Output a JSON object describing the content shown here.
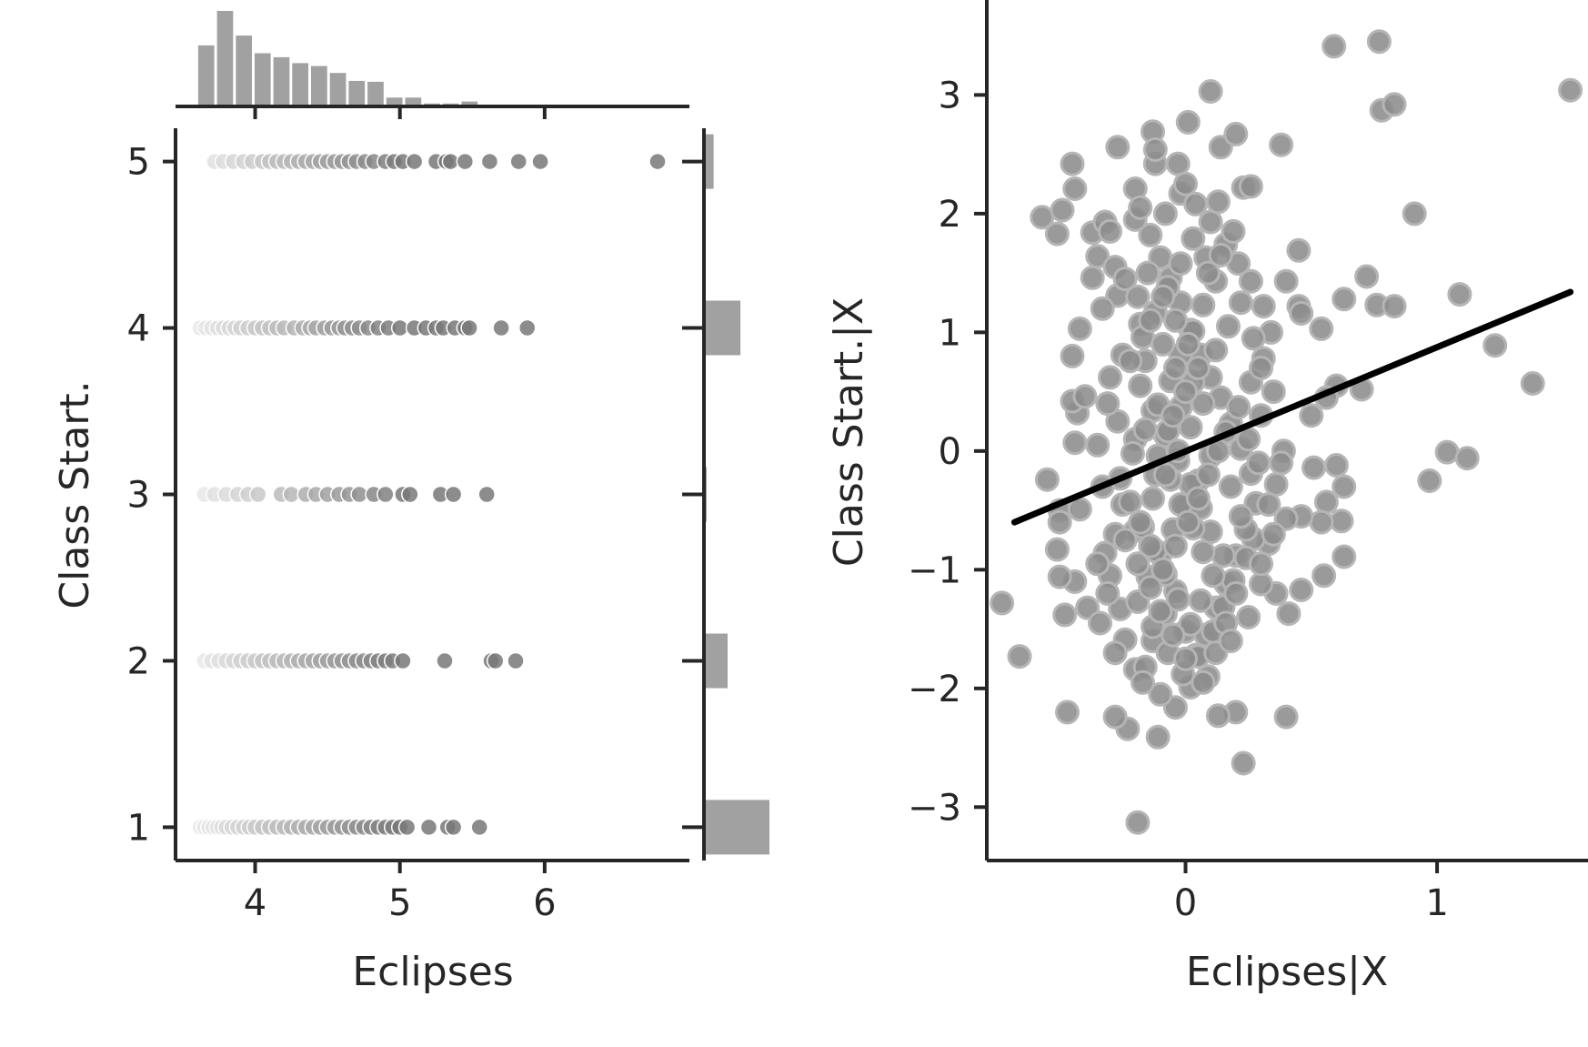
{
  "chart_data": [
    {
      "type": "scatter",
      "panel": "joint",
      "xlabel": "Eclipses",
      "ylabel": "Class Start.",
      "xlim": [
        3.45,
        7.0
      ],
      "ylim": [
        0.8,
        5.2
      ],
      "xticks": [
        4,
        5,
        6
      ],
      "yticks": [
        1,
        2,
        3,
        4,
        5
      ],
      "xtick_labels": [
        "4",
        "5",
        "6"
      ],
      "ytick_labels": [
        "1",
        "2",
        "3",
        "4",
        "5"
      ],
      "marginal_x_histogram": {
        "bin_start": 3.6,
        "bin_width": 0.13,
        "counts": [
          62,
          97,
          72,
          54,
          50,
          44,
          41,
          34,
          26,
          25,
          9,
          9,
          3,
          3,
          5
        ]
      },
      "marginal_y_histogram": {
        "categories": [
          1,
          2,
          3,
          4,
          5
        ],
        "counts": [
          122,
          44,
          5,
          68,
          18
        ]
      },
      "series": [
        {
          "y": 5,
          "x": [
            3.72,
            3.78,
            3.85,
            3.92,
            3.98,
            4.05,
            4.1,
            4.15,
            4.2,
            4.25,
            4.3,
            4.35,
            4.4,
            4.45,
            4.5,
            4.55,
            4.6,
            4.65,
            4.7,
            4.76,
            4.82,
            4.9,
            4.96,
            5.02,
            5.1,
            5.25,
            5.32,
            5.35,
            5.45,
            5.62,
            5.82,
            5.97,
            6.78
          ]
        },
        {
          "y": 4,
          "x": [
            3.62,
            3.66,
            3.7,
            3.74,
            3.78,
            3.82,
            3.86,
            3.9,
            3.95,
            4.0,
            4.05,
            4.1,
            4.15,
            4.2,
            4.27,
            4.33,
            4.38,
            4.42,
            4.48,
            4.53,
            4.58,
            4.62,
            4.67,
            4.72,
            4.78,
            4.85,
            4.92,
            5.0,
            5.1,
            5.18,
            5.25,
            5.3,
            5.38,
            5.45,
            5.48,
            5.7,
            5.88
          ]
        },
        {
          "y": 3,
          "x": [
            3.65,
            3.72,
            3.8,
            3.88,
            3.95,
            4.02,
            4.18,
            4.25,
            4.35,
            4.42,
            4.5,
            4.58,
            4.65,
            4.72,
            4.82,
            4.9,
            5.02,
            5.07,
            5.28,
            5.37,
            5.6
          ]
        },
        {
          "y": 2,
          "x": [
            3.65,
            3.7,
            3.75,
            3.8,
            3.85,
            3.9,
            3.95,
            4.0,
            4.05,
            4.1,
            4.15,
            4.2,
            4.25,
            4.3,
            4.35,
            4.4,
            4.45,
            4.5,
            4.55,
            4.6,
            4.65,
            4.7,
            4.75,
            4.8,
            4.85,
            4.9,
            4.95,
            5.02,
            5.31,
            5.63,
            5.66,
            5.8
          ]
        },
        {
          "y": 1,
          "x": [
            3.62,
            3.65,
            3.68,
            3.71,
            3.74,
            3.77,
            3.8,
            3.84,
            3.88,
            3.92,
            3.96,
            4.0,
            4.05,
            4.1,
            4.15,
            4.2,
            4.25,
            4.3,
            4.35,
            4.4,
            4.45,
            4.5,
            4.55,
            4.6,
            4.65,
            4.7,
            4.75,
            4.8,
            4.85,
            4.9,
            4.95,
            5.0,
            5.05,
            5.2,
            5.33,
            5.37,
            5.55
          ]
        }
      ]
    },
    {
      "type": "scatter",
      "panel": "partial-regression",
      "xlabel": "Eclipses|X",
      "ylabel": "Class Start.|X",
      "xlim": [
        -0.79,
        1.6
      ],
      "ylim": [
        -3.45,
        3.8
      ],
      "xticks": [
        0,
        1
      ],
      "yticks": [
        -3,
        -2,
        -1,
        0,
        1,
        2,
        3
      ],
      "xtick_labels": [
        "0",
        "1"
      ],
      "ytick_labels": [
        "−3",
        "−2",
        "−1",
        "0",
        "1",
        "2",
        "3"
      ],
      "fit_line": {
        "x": [
          -0.68,
          1.53
        ],
        "y": [
          -0.6,
          1.34
        ]
      },
      "points": [
        [
          -0.57,
          1.97
        ],
        [
          -0.49,
          2.03
        ],
        [
          -0.51,
          1.83
        ],
        [
          -0.44,
          2.21
        ],
        [
          -0.45,
          2.42
        ],
        [
          -0.37,
          1.84
        ],
        [
          -0.32,
          1.93
        ],
        [
          -0.27,
          2.56
        ],
        [
          -0.2,
          2.21
        ],
        [
          -0.13,
          2.69
        ],
        [
          -0.12,
          2.42
        ],
        [
          -0.12,
          2.54
        ],
        [
          -0.03,
          2.42
        ],
        [
          0.01,
          2.77
        ],
        [
          0.1,
          3.03
        ],
        [
          0.14,
          2.56
        ],
        [
          0.2,
          2.67
        ],
        [
          0.23,
          2.22
        ],
        [
          0.26,
          2.23
        ],
        [
          0.38,
          2.58
        ],
        [
          0.59,
          3.41
        ],
        [
          0.77,
          3.45
        ],
        [
          0.78,
          2.87
        ],
        [
          0.83,
          2.92
        ],
        [
          1.53,
          3.04
        ],
        [
          0.91,
          2.0
        ],
        [
          0.45,
          1.69
        ],
        [
          0.63,
          1.28
        ],
        [
          0.72,
          1.47
        ],
        [
          0.76,
          1.23
        ],
        [
          0.83,
          1.22
        ],
        [
          1.09,
          1.32
        ],
        [
          1.23,
          0.89
        ],
        [
          1.38,
          0.57
        ],
        [
          1.04,
          -0.01
        ],
        [
          1.12,
          -0.06
        ],
        [
          0.97,
          -0.25
        ],
        [
          0.54,
          1.03
        ],
        [
          0.45,
          1.22
        ],
        [
          0.46,
          1.16
        ],
        [
          0.4,
          1.43
        ],
        [
          0.6,
          0.55
        ],
        [
          0.7,
          0.52
        ],
        [
          0.56,
          0.45
        ],
        [
          0.5,
          0.3
        ],
        [
          0.39,
          0.0
        ],
        [
          0.38,
          -0.1
        ],
        [
          0.36,
          -0.28
        ],
        [
          0.51,
          -0.14
        ],
        [
          0.6,
          -0.12
        ],
        [
          0.63,
          -0.3
        ],
        [
          0.56,
          -0.43
        ],
        [
          0.62,
          -0.59
        ],
        [
          0.54,
          -0.6
        ],
        [
          0.46,
          -0.55
        ],
        [
          0.4,
          -0.57
        ],
        [
          0.33,
          -0.78
        ],
        [
          0.27,
          -0.74
        ],
        [
          0.63,
          -0.89
        ],
        [
          0.55,
          -1.05
        ],
        [
          0.46,
          -1.17
        ],
        [
          0.36,
          -1.2
        ],
        [
          0.3,
          -1.12
        ],
        [
          0.41,
          -1.37
        ],
        [
          0.4,
          -2.24
        ],
        [
          0.23,
          -2.63
        ],
        [
          0.2,
          -2.2
        ],
        [
          0.13,
          -2.23
        ],
        [
          0.09,
          -1.9
        ],
        [
          0.02,
          -1.99
        ],
        [
          -0.04,
          -2.16
        ],
        [
          -0.11,
          -2.41
        ],
        [
          -0.23,
          -2.34
        ],
        [
          -0.28,
          -2.24
        ],
        [
          -0.47,
          -2.2
        ],
        [
          -0.19,
          -3.13
        ],
        [
          -0.66,
          -1.73
        ],
        [
          -0.73,
          -1.28
        ],
        [
          -0.48,
          -1.38
        ],
        [
          -0.39,
          -1.32
        ],
        [
          -0.44,
          -1.1
        ],
        [
          -0.51,
          -0.83
        ],
        [
          -0.5,
          -1.06
        ],
        [
          -0.5,
          -0.5
        ],
        [
          -0.5,
          -0.6
        ],
        [
          -0.55,
          -0.24
        ],
        [
          -0.42,
          -0.49
        ],
        [
          -0.44,
          0.07
        ],
        [
          -0.43,
          0.32
        ],
        [
          -0.45,
          0.42
        ],
        [
          -0.4,
          0.46
        ],
        [
          -0.45,
          0.8
        ],
        [
          -0.42,
          1.03
        ],
        [
          -0.37,
          1.46
        ],
        [
          -0.35,
          1.64
        ],
        [
          -0.28,
          1.55
        ],
        [
          -0.27,
          1.31
        ],
        [
          -0.18,
          1.07
        ],
        [
          -0.16,
          0.76
        ],
        [
          -0.25,
          0.81
        ],
        [
          -0.3,
          0.62
        ],
        [
          -0.27,
          0.25
        ],
        [
          -0.2,
          0.1
        ],
        [
          -0.12,
          -0.2
        ],
        [
          -0.25,
          -0.45
        ],
        [
          -0.2,
          -0.67
        ],
        [
          -0.32,
          -0.86
        ],
        [
          -0.3,
          -1.05
        ],
        [
          -0.26,
          -1.33
        ],
        [
          -0.24,
          -1.59
        ],
        [
          -0.2,
          -1.84
        ],
        [
          -0.16,
          -1.82
        ],
        [
          -0.13,
          -1.6
        ],
        [
          -0.08,
          -1.37
        ],
        [
          -0.04,
          -1.18
        ],
        [
          0.0,
          -1.52
        ],
        [
          0.04,
          -1.72
        ],
        [
          0.08,
          -1.55
        ],
        [
          0.12,
          -1.32
        ],
        [
          0.16,
          -1.12
        ],
        [
          0.2,
          -0.88
        ],
        [
          0.24,
          -0.66
        ],
        [
          0.28,
          -0.44
        ],
        [
          0.26,
          -0.19
        ],
        [
          0.22,
          0.02
        ],
        [
          0.18,
          0.23
        ],
        [
          0.14,
          0.45
        ],
        [
          0.1,
          0.62
        ],
        [
          0.06,
          0.81
        ],
        [
          0.02,
          1.02
        ],
        [
          -0.02,
          1.25
        ],
        [
          -0.06,
          1.46
        ],
        [
          -0.1,
          1.63
        ],
        [
          -0.14,
          1.82
        ],
        [
          -0.08,
          2.0
        ],
        [
          -0.02,
          2.17
        ],
        [
          0.04,
          2.08
        ],
        [
          0.1,
          1.93
        ],
        [
          0.16,
          1.74
        ],
        [
          0.21,
          1.58
        ],
        [
          0.26,
          1.43
        ],
        [
          0.31,
          1.22
        ],
        [
          0.34,
          1.0
        ],
        [
          0.31,
          0.78
        ],
        [
          0.26,
          0.58
        ],
        [
          0.21,
          0.37
        ],
        [
          0.16,
          0.16
        ],
        [
          0.1,
          -0.04
        ],
        [
          0.05,
          -0.25
        ],
        [
          0.0,
          -0.46
        ],
        [
          -0.05,
          -0.66
        ],
        [
          -0.1,
          -0.87
        ],
        [
          -0.15,
          -1.06
        ],
        [
          -0.19,
          -1.27
        ],
        [
          -0.13,
          -1.48
        ],
        [
          -0.07,
          -1.7
        ],
        [
          -0.01,
          -1.88
        ],
        [
          0.05,
          -1.73
        ],
        [
          0.11,
          -1.52
        ],
        [
          0.15,
          -1.31
        ],
        [
          0.19,
          -1.09
        ],
        [
          0.15,
          -0.88
        ],
        [
          0.1,
          -0.68
        ],
        [
          0.06,
          -0.48
        ],
        [
          0.02,
          -0.28
        ],
        [
          -0.03,
          -0.08
        ],
        [
          -0.08,
          0.13
        ],
        [
          -0.13,
          0.34
        ],
        [
          -0.18,
          0.55
        ],
        [
          -0.22,
          0.76
        ],
        [
          -0.17,
          0.96
        ],
        [
          -0.12,
          1.17
        ],
        [
          -0.07,
          1.38
        ],
        [
          -0.02,
          1.58
        ],
        [
          0.03,
          1.79
        ],
        [
          0.08,
          1.63
        ],
        [
          0.12,
          1.43
        ],
        [
          0.07,
          1.23
        ],
        [
          0.03,
          1.01
        ],
        [
          -0.02,
          0.81
        ],
        [
          -0.06,
          0.59
        ],
        [
          -0.11,
          0.39
        ],
        [
          -0.16,
          0.18
        ],
        [
          -0.21,
          -0.02
        ],
        [
          -0.26,
          -0.23
        ],
        [
          -0.22,
          -0.43
        ],
        [
          -0.17,
          -0.64
        ],
        [
          -0.12,
          -0.84
        ],
        [
          -0.08,
          -1.04
        ],
        [
          -0.03,
          -1.25
        ],
        [
          0.02,
          -1.46
        ],
        [
          0.06,
          -1.26
        ],
        [
          0.11,
          -1.05
        ],
        [
          0.07,
          -0.85
        ],
        [
          0.03,
          -0.65
        ],
        [
          -0.02,
          -0.45
        ],
        [
          -0.06,
          -0.24
        ],
        [
          -0.11,
          -0.04
        ],
        [
          -0.07,
          0.17
        ],
        [
          -0.02,
          0.37
        ],
        [
          0.03,
          0.58
        ],
        [
          0.07,
          0.4
        ],
        [
          0.02,
          0.2
        ],
        [
          -0.03,
          0.0
        ],
        [
          -0.08,
          -0.2
        ],
        [
          -0.13,
          -0.4
        ],
        [
          -0.18,
          -0.6
        ],
        [
          -0.14,
          -0.8
        ],
        [
          -0.09,
          -1.0
        ],
        [
          -0.04,
          -0.8
        ],
        [
          0.01,
          -0.6
        ],
        [
          0.05,
          -0.4
        ],
        [
          0.09,
          -0.2
        ],
        [
          0.13,
          0.0
        ],
        [
          0.18,
          -0.3
        ],
        [
          0.22,
          -0.55
        ],
        [
          0.24,
          -0.9
        ],
        [
          0.2,
          -1.2
        ],
        [
          0.16,
          -1.45
        ],
        [
          0.12,
          -1.7
        ],
        [
          0.07,
          -1.95
        ],
        [
          -0.1,
          -2.05
        ],
        [
          -0.17,
          -1.95
        ],
        [
          -0.28,
          -1.7
        ],
        [
          -0.34,
          -1.45
        ],
        [
          -0.31,
          -1.2
        ],
        [
          -0.35,
          -0.95
        ],
        [
          -0.28,
          -0.7
        ],
        [
          -0.33,
          -0.3
        ],
        [
          -0.35,
          0.05
        ],
        [
          -0.31,
          0.4
        ],
        [
          -0.33,
          1.2
        ],
        [
          -0.24,
          1.45
        ],
        [
          -0.3,
          1.85
        ],
        [
          -0.2,
          1.95
        ],
        [
          -0.15,
          1.5
        ],
        [
          -0.09,
          1.3
        ],
        [
          -0.04,
          1.1
        ],
        [
          0.01,
          0.9
        ],
        [
          0.05,
          0.7
        ],
        [
          0.12,
          0.85
        ],
        [
          0.17,
          1.05
        ],
        [
          0.22,
          1.25
        ],
        [
          0.27,
          0.95
        ],
        [
          0.3,
          0.7
        ],
        [
          0.35,
          0.5
        ],
        [
          0.3,
          0.3
        ],
        [
          0.25,
          0.1
        ],
        [
          0.29,
          -0.1
        ],
        [
          0.33,
          -0.45
        ],
        [
          0.35,
          -0.7
        ],
        [
          0.3,
          -0.95
        ],
        [
          0.25,
          -1.4
        ],
        [
          0.18,
          -1.6
        ],
        [
          0.0,
          -1.75
        ],
        [
          -0.05,
          -1.55
        ],
        [
          -0.1,
          -1.35
        ],
        [
          -0.14,
          -1.15
        ],
        [
          -0.19,
          -0.95
        ],
        [
          -0.24,
          -0.75
        ],
        [
          -0.05,
          0.3
        ],
        [
          0.0,
          0.5
        ],
        [
          -0.04,
          0.7
        ],
        [
          -0.09,
          0.9
        ],
        [
          -0.14,
          1.1
        ],
        [
          -0.19,
          1.3
        ],
        [
          0.09,
          1.5
        ],
        [
          0.14,
          1.65
        ],
        [
          0.19,
          1.85
        ],
        [
          0.13,
          2.1
        ],
        [
          0.0,
          2.25
        ],
        [
          -0.18,
          2.05
        ]
      ]
    }
  ]
}
